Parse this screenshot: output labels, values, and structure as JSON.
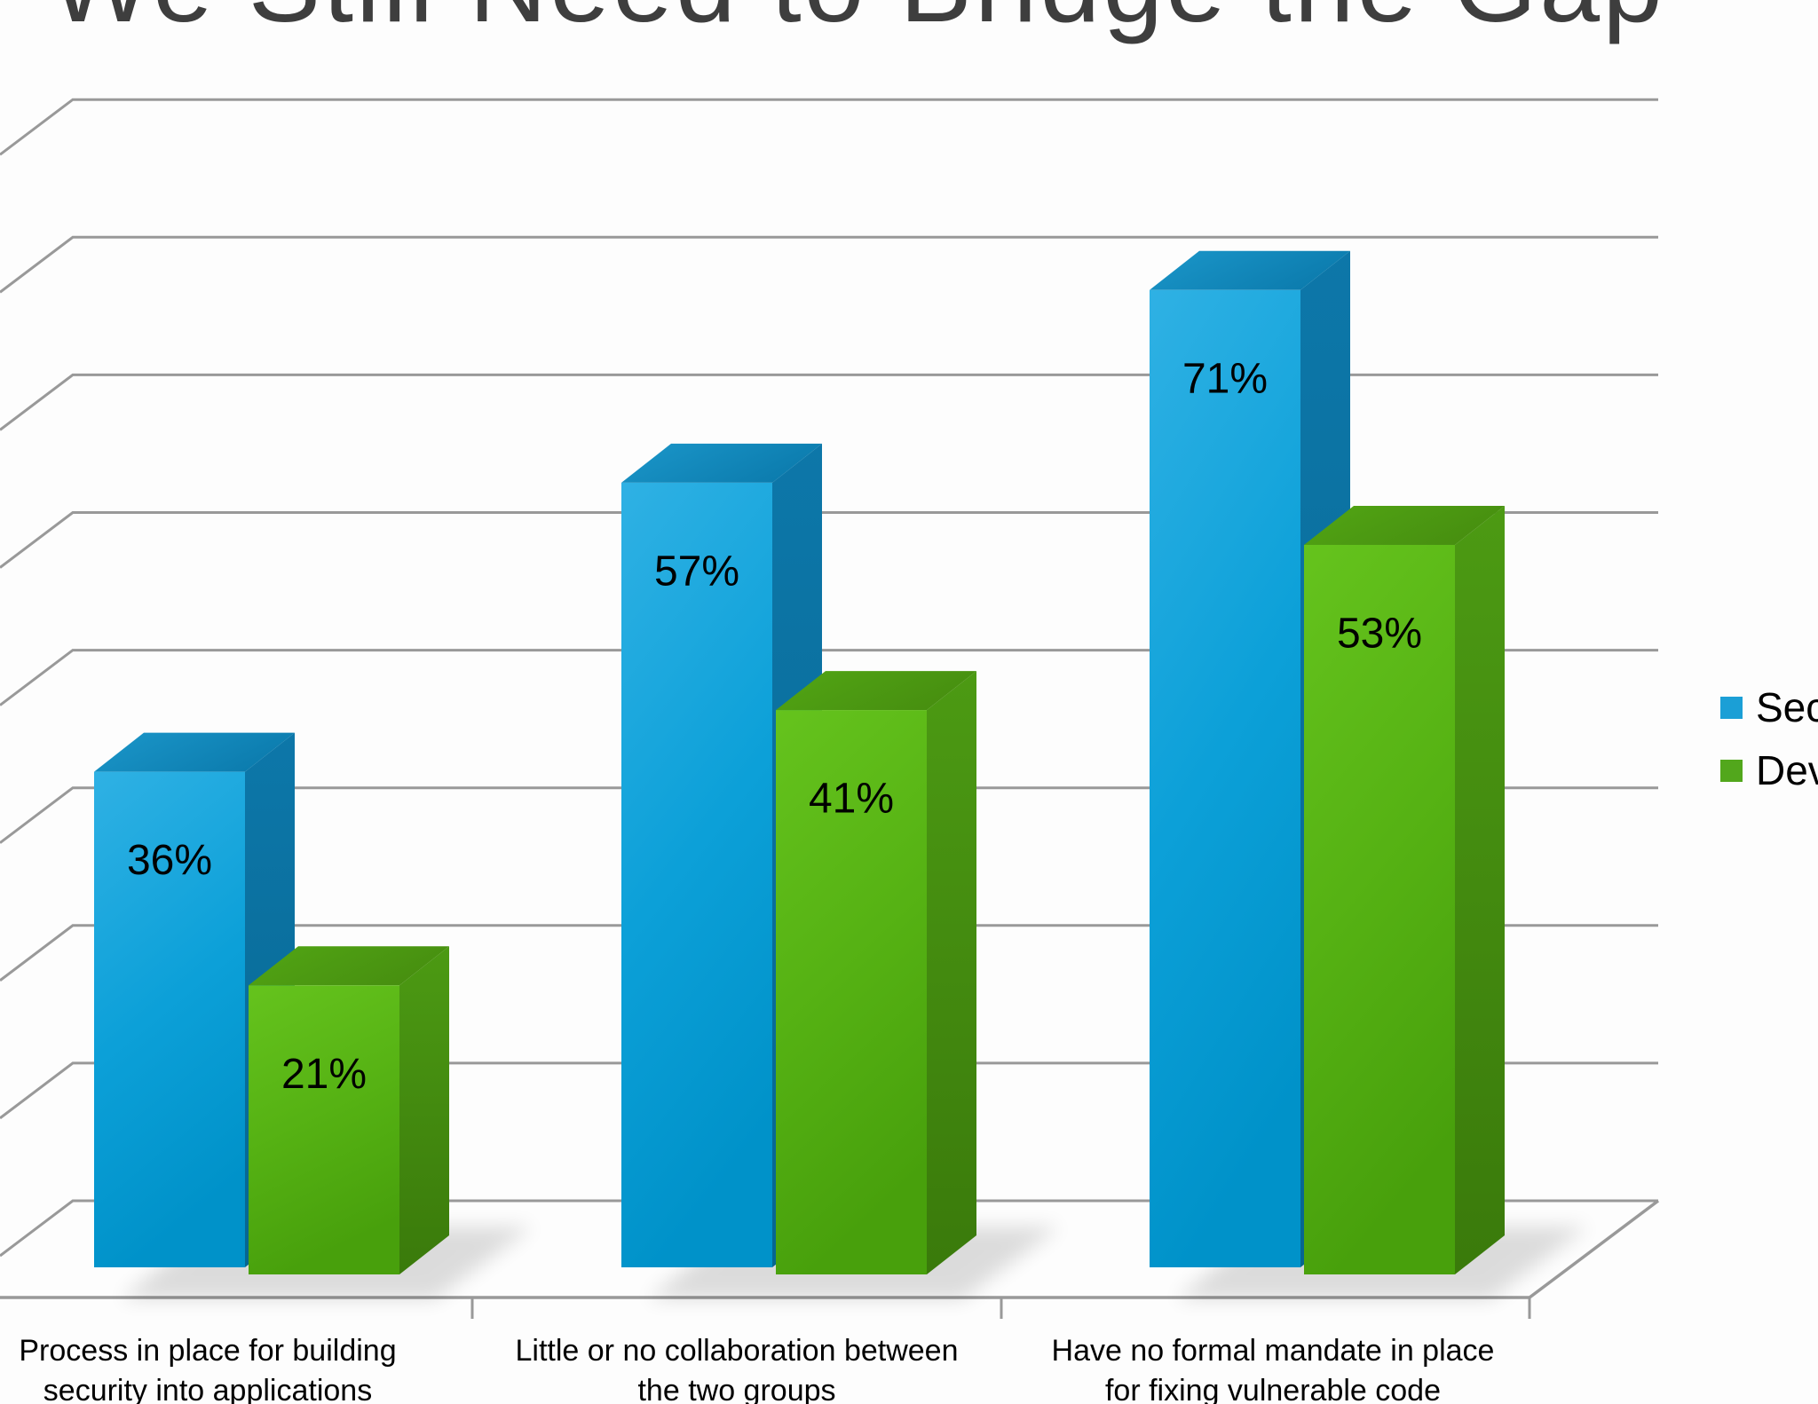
{
  "title": {
    "text": "We Still Need to Bridge the Gap"
  },
  "legend": {
    "position": "right",
    "items": [
      {
        "label": "Sec",
        "color": "#1b9fd6"
      },
      {
        "label": "Dev",
        "color": "#52a71c"
      }
    ]
  },
  "chart_data": {
    "type": "bar",
    "style": "3d-clustered",
    "title": "We Still Need to Bridge the Gap",
    "categories": [
      [
        "Process in place for building",
        "security into applications"
      ],
      [
        "Little or no collaboration between",
        "the two groups"
      ],
      [
        "Have no formal mandate in place",
        "for fixing vulnerable code"
      ]
    ],
    "series": [
      {
        "name": "Sec",
        "values": [
          36,
          57,
          71
        ],
        "color": "#1b9fd6"
      },
      {
        "name": "Dev",
        "values": [
          21,
          41,
          53
        ],
        "color": "#52a71c"
      }
    ],
    "value_labels": [
      [
        "36%",
        "57%",
        "71%"
      ],
      [
        "21%",
        "41%",
        "53%"
      ]
    ],
    "value_label_format": "percent",
    "xlabel": "",
    "ylabel": "",
    "ylim": [
      0,
      80
    ],
    "grid_step": 10,
    "grid": true,
    "legend_position": "right",
    "colors": {
      "grid_line": "#999999",
      "axis_line": "#999999",
      "value_label": "#000000",
      "title": "#3e3e3e"
    }
  }
}
